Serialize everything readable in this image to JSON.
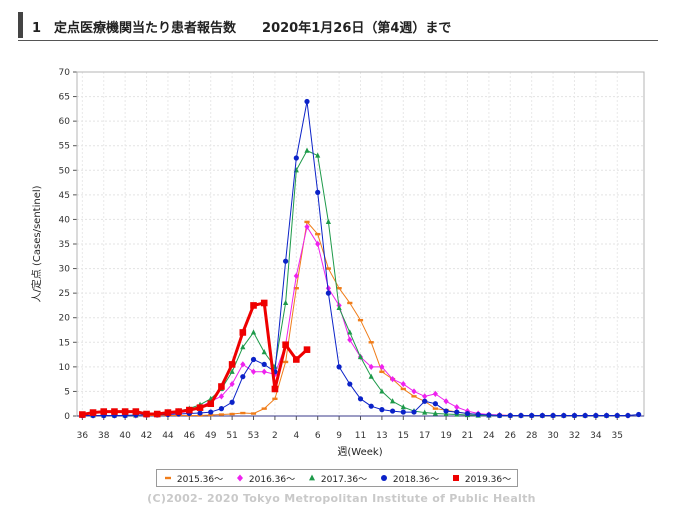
{
  "header": {
    "title": "1　定点医療機関当たり患者報告数　　2020年1月26日（第4週）まで"
  },
  "footer": {
    "credit": "(C)2002- 2020 Tokyo Metropolitan Institute of Public Health"
  },
  "chart_data": {
    "type": "line",
    "ylabel": "人/定点 (Cases/sentinel)",
    "xlabel": "週(Week)",
    "ylim": [
      0,
      70
    ],
    "yticks": [
      0,
      5,
      10,
      15,
      20,
      25,
      30,
      35,
      40,
      45,
      50,
      55,
      60,
      65,
      70
    ],
    "grid": true,
    "legend_position": "bottom",
    "x_count": 53,
    "x_ticks": [
      {
        "i": 0,
        "label": "36"
      },
      {
        "i": 2,
        "label": "38"
      },
      {
        "i": 4,
        "label": "40"
      },
      {
        "i": 6,
        "label": "42"
      },
      {
        "i": 8,
        "label": "44"
      },
      {
        "i": 10,
        "label": "46"
      },
      {
        "i": 12,
        "label": "49"
      },
      {
        "i": 14,
        "label": "51"
      },
      {
        "i": 16,
        "label": "53"
      },
      {
        "i": 18,
        "label": "2"
      },
      {
        "i": 20,
        "label": "4"
      },
      {
        "i": 22,
        "label": "6"
      },
      {
        "i": 24,
        "label": "9"
      },
      {
        "i": 26,
        "label": "11"
      },
      {
        "i": 28,
        "label": "13"
      },
      {
        "i": 30,
        "label": "15"
      },
      {
        "i": 32,
        "label": "17"
      },
      {
        "i": 34,
        "label": "19"
      },
      {
        "i": 36,
        "label": "21"
      },
      {
        "i": 38,
        "label": "24"
      },
      {
        "i": 40,
        "label": "26"
      },
      {
        "i": 42,
        "label": "28"
      },
      {
        "i": 44,
        "label": "30"
      },
      {
        "i": 46,
        "label": "32"
      },
      {
        "i": 48,
        "label": "34"
      },
      {
        "i": 50,
        "label": "35"
      }
    ],
    "series": [
      {
        "name": "2015.36〜",
        "color": "#f07d1a",
        "marker": "dash",
        "values": [
          0.1,
          0.1,
          0.1,
          0.1,
          0.1,
          0.1,
          0.1,
          0.1,
          0.1,
          0.1,
          0.1,
          0.1,
          0.2,
          0.3,
          0.4,
          0.6,
          0.5,
          1.5,
          3.5,
          11,
          26,
          39.5,
          37,
          30,
          26,
          23,
          19.5,
          15,
          9,
          7.5,
          5.5,
          4,
          3,
          1.5,
          1.2,
          0.8,
          0.5,
          0.3,
          0.2,
          0.2,
          0.1,
          0.1,
          0.1,
          0.1,
          0.1,
          0.1,
          0.1,
          0.1,
          0.1,
          0.1,
          0.1,
          0.1
        ]
      },
      {
        "name": "2016.36〜",
        "color": "#ee22ee",
        "marker": "diamond",
        "values": [
          0.1,
          0.1,
          0.1,
          0.1,
          0.1,
          0.1,
          0.2,
          0.3,
          0.4,
          0.6,
          1,
          1.8,
          3,
          4,
          6.5,
          10.5,
          9,
          9,
          8.5,
          14.5,
          28.5,
          38.5,
          35,
          26,
          22.5,
          15.5,
          12,
          10,
          10,
          7.5,
          6.5,
          5,
          4,
          4.5,
          3,
          1.8,
          1,
          0.5,
          0.3,
          0.2,
          0.1,
          0.1,
          0.1,
          0.1,
          0.1,
          0.1,
          0.1,
          0.1,
          0.1,
          0.1,
          0.1,
          0.1
        ]
      },
      {
        "name": "2017.36〜",
        "color": "#1e9a4a",
        "marker": "triangle",
        "values": [
          0.1,
          0.1,
          0.1,
          0.1,
          0.1,
          0.1,
          0.2,
          0.4,
          0.6,
          1,
          1.5,
          2.3,
          3.5,
          5.5,
          9,
          14,
          17,
          13,
          10,
          23,
          50,
          54,
          53,
          39.5,
          22,
          17,
          12,
          8,
          5,
          3,
          1.8,
          1,
          0.7,
          0.5,
          0.4,
          0.3,
          0.2,
          0.1,
          0.1,
          0.1,
          0.1,
          0.1,
          0.1,
          0.1,
          0.1,
          0.1,
          0.1,
          0.1,
          0.1,
          0.1,
          0.1
        ]
      },
      {
        "name": "2018.36〜",
        "color": "#0b22c8",
        "marker": "circle",
        "values": [
          0.1,
          0.1,
          0.1,
          0.1,
          0.1,
          0.2,
          0.2,
          0.2,
          0.3,
          0.4,
          0.5,
          0.6,
          0.8,
          1.5,
          2.8,
          8,
          11.5,
          10.5,
          9,
          31.5,
          52.5,
          64,
          45.5,
          25,
          10,
          6.5,
          3.5,
          2,
          1.3,
          1,
          0.8,
          0.8,
          3,
          2.5,
          1,
          0.8,
          0.5,
          0.3,
          0.2,
          0.1,
          0.1,
          0.1,
          0.1,
          0.1,
          0.1,
          0.1,
          0.1,
          0.1,
          0.1,
          0.1,
          0.1,
          0.1,
          0.3
        ]
      },
      {
        "name": "2019.36〜",
        "color": "#ee0000",
        "marker": "square",
        "bold": true,
        "values": [
          0.3,
          0.7,
          0.9,
          0.9,
          0.9,
          0.9,
          0.4,
          0.4,
          0.7,
          0.9,
          1.2,
          1.7,
          2.5,
          6,
          10.5,
          17,
          22.5,
          23,
          5.5,
          14.5,
          11.5,
          13.5
        ]
      }
    ]
  }
}
